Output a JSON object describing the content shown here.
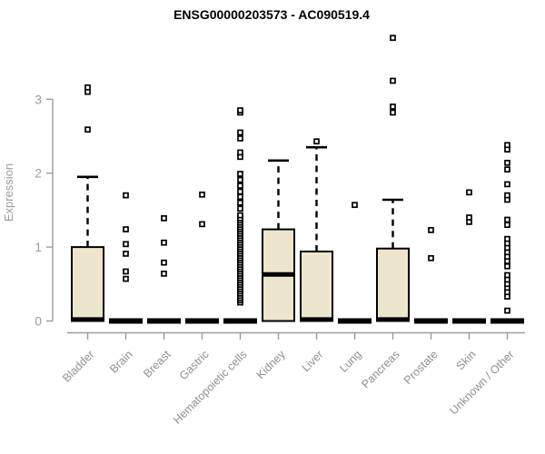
{
  "chart_data": {
    "type": "boxplot",
    "title": "ENSG00000203573 - AC090519.4",
    "ylabel": "Expression",
    "xlabel": "",
    "ylim": [
      0,
      3.9
    ],
    "yticks": [
      0,
      1,
      2,
      3
    ],
    "grid": false,
    "legend": "none",
    "box_fill": "#ece6cd",
    "box_stroke": "#000000",
    "axis_color": "#9b9b9b",
    "background": "#ffffff",
    "categories": [
      "Bladder",
      "Brain",
      "Breast",
      "Gastric",
      "Hematopoietic cells",
      "Kidney",
      "Liver",
      "Lung",
      "Pancreas",
      "Prostate",
      "Skin",
      "Unknown / Other"
    ],
    "boxes": [
      {
        "category": "Bladder",
        "q1": 0,
        "median": 0.02,
        "q3": 1.0,
        "whisker_low": 0,
        "whisker_high": 1.95,
        "outliers": [
          2.59,
          3.1,
          3.16
        ]
      },
      {
        "category": "Brain",
        "q1": 0,
        "median": 0,
        "q3": 0.02,
        "whisker_low": 0,
        "whisker_high": 0.02,
        "outliers": [
          0.57,
          0.67,
          0.91,
          1.04,
          1.24,
          1.7
        ]
      },
      {
        "category": "Breast",
        "q1": 0,
        "median": 0,
        "q3": 0.02,
        "whisker_low": 0,
        "whisker_high": 0.02,
        "outliers": [
          0.64,
          0.79,
          1.06,
          1.39
        ]
      },
      {
        "category": "Gastric",
        "q1": 0,
        "median": 0,
        "q3": 0.02,
        "whisker_low": 0,
        "whisker_high": 0.02,
        "outliers": [
          1.31,
          1.71
        ]
      },
      {
        "category": "Hematopoietic cells",
        "q1": 0,
        "median": 0,
        "q3": 0.02,
        "whisker_low": 0,
        "whisker_high": 0.02,
        "outliers": [
          0.25,
          0.28,
          0.31,
          0.34,
          0.37,
          0.4,
          0.43,
          0.46,
          0.49,
          0.52,
          0.55,
          0.58,
          0.61,
          0.64,
          0.67,
          0.7,
          0.73,
          0.76,
          0.79,
          0.82,
          0.85,
          0.88,
          0.91,
          0.94,
          0.97,
          1.0,
          1.03,
          1.06,
          1.09,
          1.12,
          1.15,
          1.18,
          1.21,
          1.24,
          1.27,
          1.3,
          1.33,
          1.36,
          1.39,
          1.43,
          1.52,
          1.6,
          1.68,
          1.75,
          1.83,
          1.91,
          1.99,
          2.22,
          2.28,
          2.47,
          2.55,
          2.82,
          2.85
        ]
      },
      {
        "category": "Kidney",
        "q1": 0,
        "median": 0.63,
        "q3": 1.24,
        "whisker_low": 0,
        "whisker_high": 2.17,
        "outliers": []
      },
      {
        "category": "Liver",
        "q1": 0,
        "median": 0.02,
        "q3": 0.94,
        "whisker_low": 0,
        "whisker_high": 2.35,
        "outliers": [
          2.43
        ]
      },
      {
        "category": "Lung",
        "q1": 0,
        "median": 0,
        "q3": 0.02,
        "whisker_low": 0,
        "whisker_high": 0.02,
        "outliers": [
          1.57
        ]
      },
      {
        "category": "Pancreas",
        "q1": 0,
        "median": 0.02,
        "q3": 0.98,
        "whisker_low": 0,
        "whisker_high": 1.64,
        "outliers": [
          2.82,
          2.9,
          3.25,
          3.83
        ]
      },
      {
        "category": "Prostate",
        "q1": 0,
        "median": 0,
        "q3": 0.02,
        "whisker_low": 0,
        "whisker_high": 0.02,
        "outliers": [
          0.85,
          1.23
        ]
      },
      {
        "category": "Skin",
        "q1": 0,
        "median": 0,
        "q3": 0.02,
        "whisker_low": 0,
        "whisker_high": 0.02,
        "outliers": [
          1.34,
          1.4,
          1.74
        ]
      },
      {
        "category": "Unknown / Other",
        "q1": 0,
        "median": 0,
        "q3": 0.02,
        "whisker_low": 0,
        "whisker_high": 0.02,
        "outliers": [
          0.14,
          0.33,
          0.39,
          0.45,
          0.5,
          0.56,
          0.62,
          0.74,
          0.81,
          0.87,
          0.93,
          0.99,
          1.05,
          1.11,
          1.3,
          1.37,
          1.64,
          1.7,
          1.85,
          2.05,
          2.14,
          2.32,
          2.38
        ]
      }
    ]
  }
}
